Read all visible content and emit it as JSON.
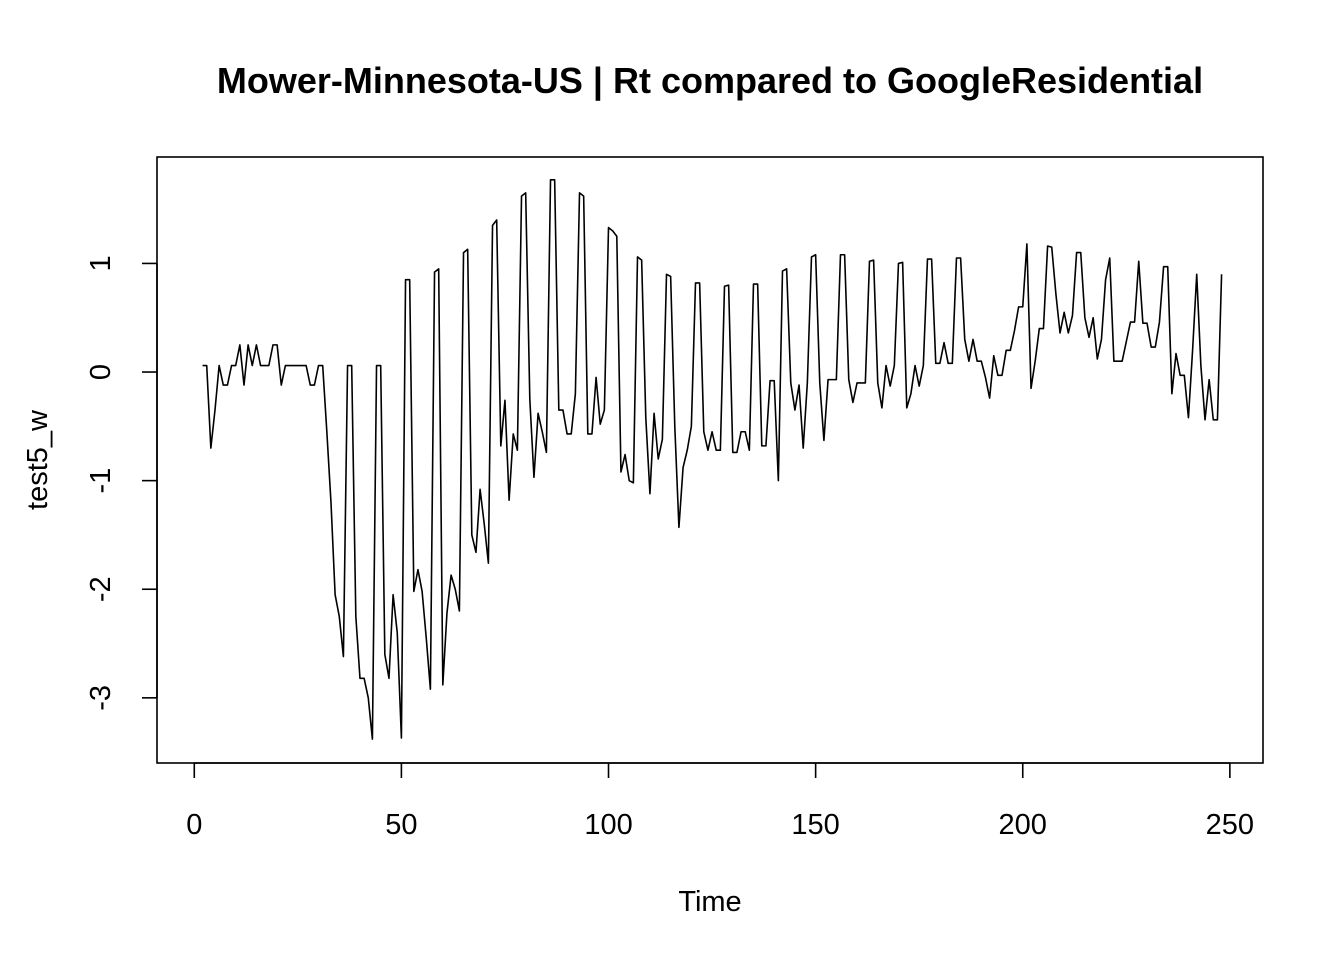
{
  "chart_data": {
    "type": "line",
    "title": "Mower-Minnesota-US | Rt compared to GoogleResidential",
    "xlabel": "Time",
    "ylabel": "test5_w",
    "xlim": [
      -9,
      258
    ],
    "ylim": [
      -3.6,
      1.98
    ],
    "x_ticks": [
      0,
      50,
      100,
      150,
      200,
      250
    ],
    "y_ticks": [
      -3,
      -2,
      -1,
      0,
      1
    ],
    "x_tick_labels": [
      "0",
      "50",
      "100",
      "150",
      "200",
      "250"
    ],
    "y_tick_labels": [
      "-3",
      "-2",
      "-1",
      "0",
      "1"
    ],
    "grid": false,
    "legend": "none",
    "line_color": "#000000",
    "series": [
      {
        "x_start": 2,
        "values": [
          0.06,
          0.06,
          -0.7,
          -0.35,
          0.06,
          -0.12,
          -0.12,
          0.06,
          0.06,
          0.25,
          -0.12,
          0.25,
          0.06,
          0.25,
          0.06,
          0.06,
          0.06,
          0.25,
          0.25,
          -0.12,
          0.06,
          0.06,
          0.06,
          0.06,
          0.06,
          0.06,
          -0.12,
          -0.12,
          0.06,
          0.06,
          -0.55,
          -1.2,
          -2.05,
          -2.25,
          -2.62,
          0.06,
          0.06,
          -2.25,
          -2.82,
          -2.82,
          -3.0,
          -3.38,
          0.06,
          0.06,
          -2.6,
          -2.82,
          -2.05,
          -2.4,
          -3.37,
          0.85,
          0.85,
          -2.02,
          -1.82,
          -2.02,
          -2.45,
          -2.92,
          0.92,
          0.95,
          -2.88,
          -2.22,
          -1.87,
          -2.0,
          -2.2,
          1.1,
          1.13,
          -1.5,
          -1.66,
          -1.08,
          -1.4,
          -1.76,
          1.35,
          1.4,
          -0.68,
          -0.26,
          -1.18,
          -0.57,
          -0.72,
          1.62,
          1.65,
          -0.25,
          -0.97,
          -0.38,
          -0.55,
          -0.74,
          1.77,
          1.77,
          -0.35,
          -0.35,
          -0.57,
          -0.57,
          -0.2,
          1.65,
          1.62,
          -0.57,
          -0.57,
          -0.05,
          -0.48,
          -0.35,
          1.33,
          1.3,
          1.25,
          -0.92,
          -0.76,
          -1.0,
          -1.02,
          1.06,
          1.03,
          -0.42,
          -1.12,
          -0.38,
          -0.8,
          -0.62,
          0.9,
          0.88,
          -0.5,
          -1.43,
          -0.88,
          -0.72,
          -0.5,
          0.82,
          0.82,
          -0.55,
          -0.72,
          -0.55,
          -0.72,
          -0.72,
          0.79,
          0.8,
          -0.74,
          -0.74,
          -0.55,
          -0.55,
          -0.72,
          0.81,
          0.81,
          -0.68,
          -0.68,
          -0.08,
          -0.08,
          -1.0,
          0.93,
          0.95,
          -0.1,
          -0.35,
          -0.12,
          -0.7,
          -0.1,
          1.06,
          1.08,
          -0.1,
          -0.63,
          -0.07,
          -0.07,
          -0.07,
          1.08,
          1.08,
          -0.07,
          -0.28,
          -0.1,
          -0.1,
          -0.1,
          1.02,
          1.03,
          -0.1,
          -0.33,
          0.06,
          -0.13,
          0.06,
          1.0,
          1.01,
          -0.33,
          -0.2,
          0.06,
          -0.13,
          0.06,
          1.04,
          1.04,
          0.08,
          0.08,
          0.27,
          0.08,
          0.08,
          1.05,
          1.05,
          0.3,
          0.1,
          0.3,
          0.1,
          0.1,
          -0.05,
          -0.24,
          0.15,
          -0.03,
          -0.03,
          0.2,
          0.2,
          0.38,
          0.6,
          0.6,
          1.18,
          -0.15,
          0.1,
          0.4,
          0.4,
          1.16,
          1.15,
          0.72,
          0.36,
          0.55,
          0.36,
          0.52,
          1.1,
          1.1,
          0.5,
          0.32,
          0.5,
          0.12,
          0.3,
          0.85,
          1.05,
          0.1,
          0.1,
          0.1,
          0.28,
          0.46,
          0.46,
          1.02,
          0.45,
          0.45,
          0.23,
          0.23,
          0.46,
          0.97,
          0.97,
          -0.2,
          0.17,
          -0.03,
          -0.03,
          -0.42,
          0.2,
          0.9,
          0.06,
          -0.44,
          -0.07,
          -0.44,
          -0.44,
          0.9
        ]
      }
    ]
  }
}
